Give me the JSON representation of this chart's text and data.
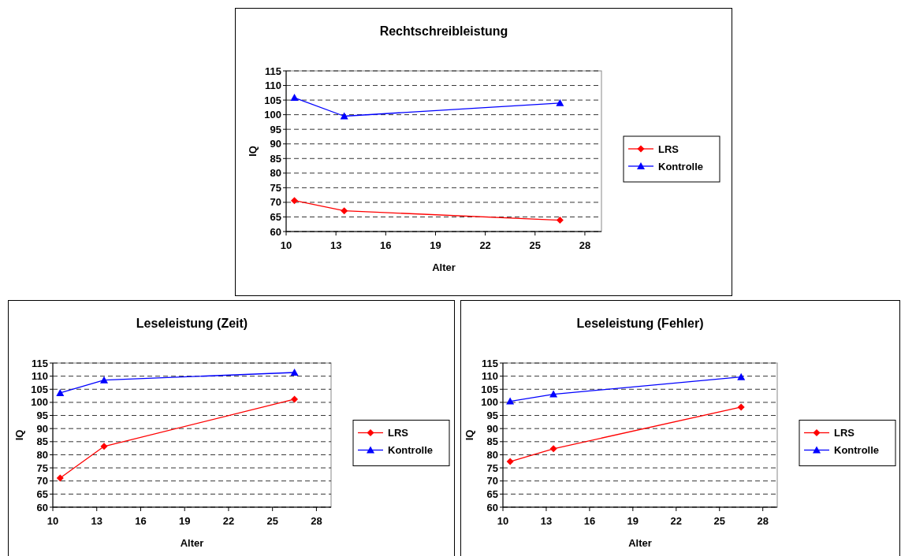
{
  "chart_data": [
    {
      "type": "line",
      "title": "Rechtschreibleistung",
      "xlabel": "Alter",
      "ylabel": "IQ",
      "x": [
        10.5,
        13.5,
        26.5
      ],
      "xlim": [
        10,
        29
      ],
      "xticks": [
        10,
        13,
        16,
        19,
        22,
        25,
        28
      ],
      "ylim": [
        60,
        115
      ],
      "yticks": [
        60,
        65,
        70,
        75,
        80,
        85,
        90,
        95,
        100,
        105,
        110,
        115
      ],
      "grid": "y",
      "legend": "right",
      "series": [
        {
          "name": "LRS",
          "color": "#ff0000",
          "marker": "diamond",
          "values": [
            70.6,
            67.1,
            63.9
          ]
        },
        {
          "name": "Kontrolle",
          "color": "#0000ff",
          "marker": "triangle",
          "values": [
            105.8,
            99.5,
            104.0
          ]
        }
      ]
    },
    {
      "type": "line",
      "title": "Leseleistung (Zeit)",
      "xlabel": "Alter",
      "ylabel": "IQ",
      "x": [
        10.5,
        13.5,
        26.5
      ],
      "xlim": [
        10,
        29
      ],
      "xticks": [
        10,
        13,
        16,
        19,
        22,
        25,
        28
      ],
      "ylim": [
        60,
        115
      ],
      "yticks": [
        60,
        65,
        70,
        75,
        80,
        85,
        90,
        95,
        100,
        105,
        110,
        115
      ],
      "grid": "y",
      "legend": "right",
      "series": [
        {
          "name": "LRS",
          "color": "#ff0000",
          "marker": "diamond",
          "values": [
            71.1,
            83.2,
            101.2
          ]
        },
        {
          "name": "Kontrolle",
          "color": "#0000ff",
          "marker": "triangle",
          "values": [
            103.6,
            108.5,
            111.4
          ]
        }
      ]
    },
    {
      "type": "line",
      "title": "Leseleistung (Fehler)",
      "xlabel": "Alter",
      "ylabel": "IQ",
      "x": [
        10.5,
        13.5,
        26.5
      ],
      "xlim": [
        10,
        29
      ],
      "xticks": [
        10,
        13,
        16,
        19,
        22,
        25,
        28
      ],
      "ylim": [
        60,
        115
      ],
      "yticks": [
        60,
        65,
        70,
        75,
        80,
        85,
        90,
        95,
        100,
        105,
        110,
        115
      ],
      "grid": "y",
      "legend": "right",
      "series": [
        {
          "name": "LRS",
          "color": "#ff0000",
          "marker": "diamond",
          "values": [
            77.4,
            82.3,
            98.2
          ]
        },
        {
          "name": "Kontrolle",
          "color": "#0000ff",
          "marker": "triangle",
          "values": [
            100.4,
            103.1,
            109.7
          ]
        }
      ]
    }
  ]
}
